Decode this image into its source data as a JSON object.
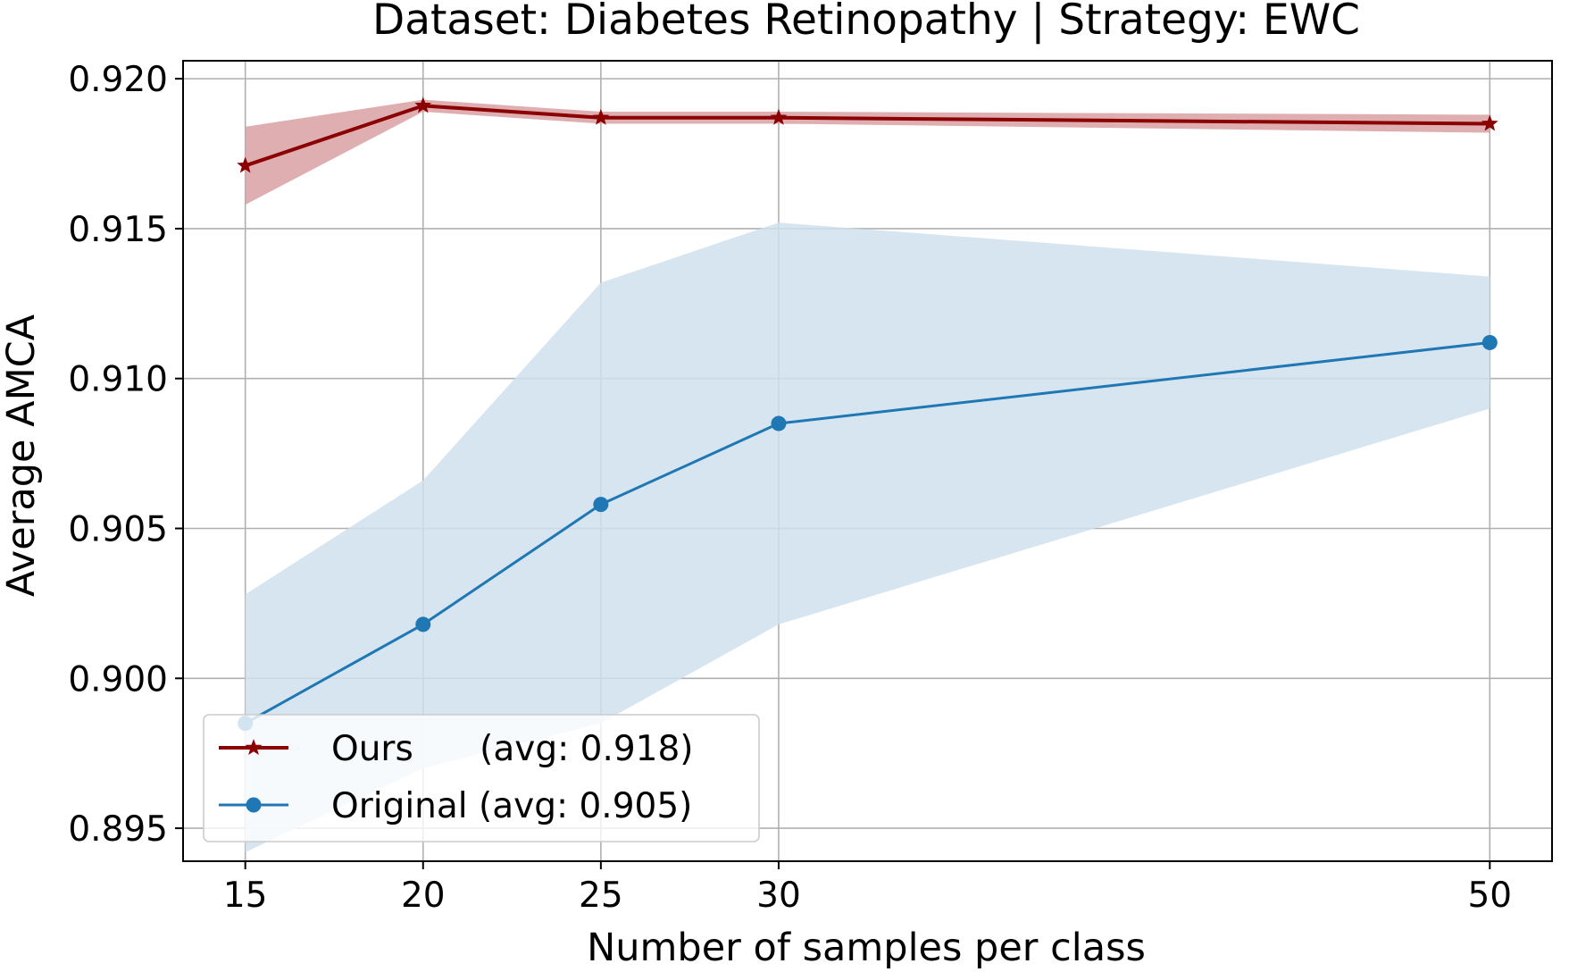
{
  "chart_data": {
    "type": "line",
    "title": "Dataset: Diabetes Retinopathy | Strategy: EWC",
    "xlabel": "Number of samples per class",
    "ylabel": "Average AMCA",
    "x": [
      15,
      20,
      25,
      30,
      50
    ],
    "x_tick_labels": [
      "15",
      "20",
      "25",
      "30",
      "50"
    ],
    "y_ticks": [
      0.895,
      0.9,
      0.905,
      0.91,
      0.915,
      0.92
    ],
    "y_tick_labels": [
      "0.895",
      "0.900",
      "0.905",
      "0.910",
      "0.915",
      "0.920"
    ],
    "xlim": [
      13.25,
      51.75
    ],
    "ylim": [
      0.8939,
      0.9206
    ],
    "grid": true,
    "legend_position": "lower-left",
    "series": [
      {
        "name": "Ours",
        "legend_label": "Ours      (avg: 0.918)",
        "values": [
          0.9171,
          0.9191,
          0.9187,
          0.9187,
          0.9185
        ],
        "band_upper": [
          0.9184,
          0.9193,
          0.9189,
          0.9189,
          0.9188
        ],
        "band_lower": [
          0.9158,
          0.9189,
          0.9185,
          0.9185,
          0.9182
        ],
        "color": "#8b0000",
        "band_color": "#d9a0a3",
        "marker": "star"
      },
      {
        "name": "Original",
        "legend_label": "Original (avg: 0.905)",
        "values": [
          0.8985,
          0.9018,
          0.9058,
          0.9085,
          0.9112
        ],
        "band_upper": [
          0.9028,
          0.9066,
          0.9132,
          0.9152,
          0.9134
        ],
        "band_lower": [
          0.8942,
          0.897,
          0.8985,
          0.9018,
          0.909
        ],
        "color": "#1f77b4",
        "band_color": "#d0e0ef",
        "marker": "circle"
      }
    ]
  }
}
